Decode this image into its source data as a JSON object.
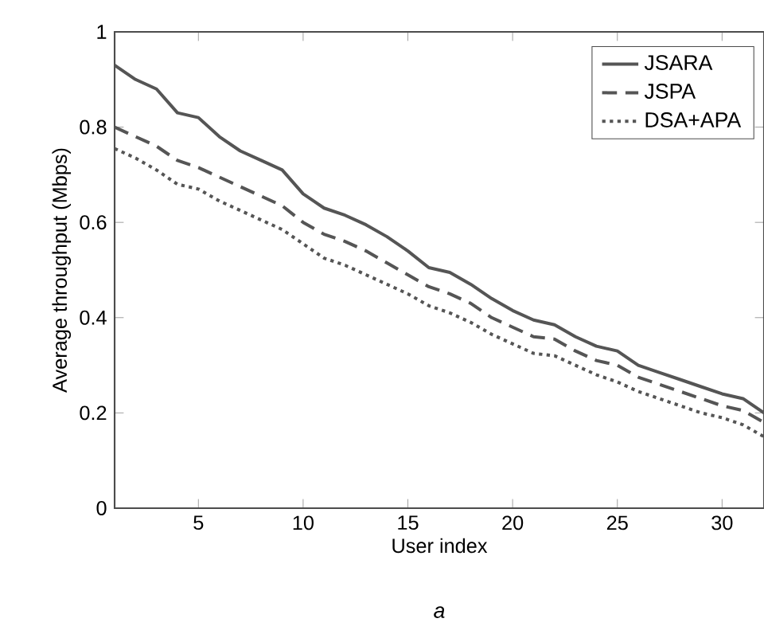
{
  "chart_data": {
    "type": "line",
    "xlabel": "User index",
    "ylabel": "Average throughput (Mbps)",
    "x": [
      1,
      2,
      3,
      4,
      5,
      6,
      7,
      8,
      9,
      10,
      11,
      12,
      13,
      14,
      15,
      16,
      17,
      18,
      19,
      20,
      21,
      22,
      23,
      24,
      25,
      26,
      27,
      28,
      29,
      30,
      31,
      32
    ],
    "series": [
      {
        "name": "JSARA",
        "color": "#555555",
        "line_style": "solid",
        "values": [
          0.93,
          0.9,
          0.88,
          0.83,
          0.82,
          0.78,
          0.75,
          0.73,
          0.71,
          0.66,
          0.63,
          0.615,
          0.595,
          0.57,
          0.54,
          0.505,
          0.495,
          0.47,
          0.44,
          0.415,
          0.395,
          0.385,
          0.36,
          0.34,
          0.33,
          0.3,
          0.285,
          0.27,
          0.255,
          0.24,
          0.23,
          0.2
        ]
      },
      {
        "name": "JSPA",
        "color": "#555555",
        "line_style": "dashed",
        "values": [
          0.8,
          0.78,
          0.76,
          0.73,
          0.715,
          0.695,
          0.675,
          0.655,
          0.635,
          0.6,
          0.575,
          0.56,
          0.54,
          0.515,
          0.49,
          0.465,
          0.45,
          0.43,
          0.4,
          0.38,
          0.36,
          0.355,
          0.33,
          0.31,
          0.3,
          0.275,
          0.26,
          0.245,
          0.23,
          0.215,
          0.205,
          0.18
        ]
      },
      {
        "name": "DSA+APA",
        "color": "#555555",
        "line_style": "dotted",
        "values": [
          0.755,
          0.735,
          0.71,
          0.68,
          0.67,
          0.645,
          0.625,
          0.605,
          0.585,
          0.555,
          0.525,
          0.51,
          0.49,
          0.47,
          0.45,
          0.425,
          0.41,
          0.39,
          0.365,
          0.345,
          0.325,
          0.32,
          0.3,
          0.28,
          0.265,
          0.245,
          0.23,
          0.215,
          0.2,
          0.19,
          0.175,
          0.15
        ]
      }
    ],
    "xlim": [
      1,
      32
    ],
    "ylim": [
      0,
      1
    ],
    "xticks": [
      5,
      10,
      15,
      20,
      25,
      30
    ],
    "yticks": [
      0,
      0.2,
      0.4,
      0.6,
      0.8,
      1
    ],
    "grid": false,
    "legend": "top right",
    "marker": "none",
    "annotations": [
      "a"
    ]
  }
}
